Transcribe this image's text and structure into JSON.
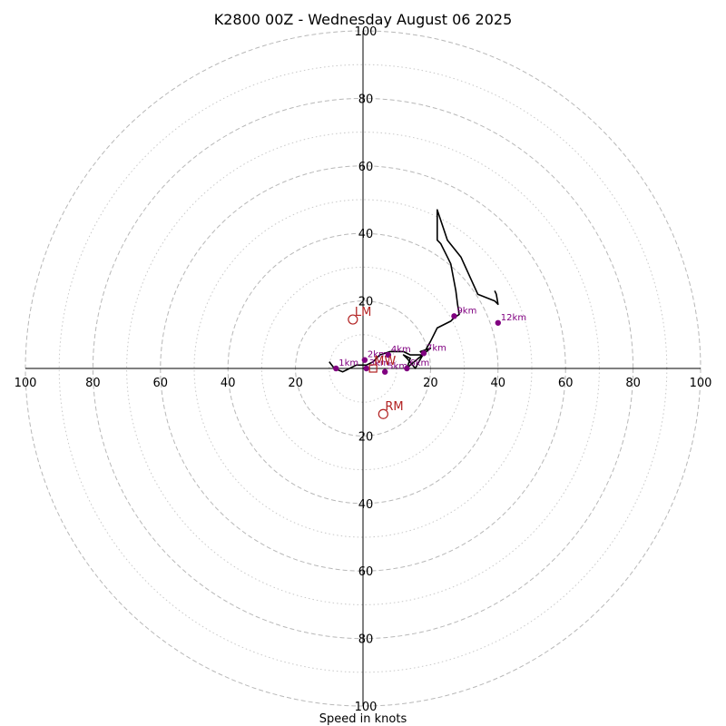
{
  "chart_data": {
    "type": "scatter",
    "title": "K2800 00Z - Wednesday August 06 2025",
    "xlabel": "Speed in knots",
    "ylabel": "",
    "xlim": [
      -100,
      100
    ],
    "ylim": [
      -100,
      100
    ],
    "rings_major": [
      20,
      40,
      60,
      80,
      100
    ],
    "rings_minor": [
      10,
      30,
      50,
      70,
      90
    ],
    "x_tick_labels": [
      "100",
      "80",
      "60",
      "40",
      "20",
      "20",
      "40",
      "60",
      "80",
      "100"
    ],
    "x_tick_values": [
      -100,
      -80,
      -60,
      -40,
      -20,
      20,
      40,
      60,
      80,
      100
    ],
    "y_tick_labels_top": [
      "100",
      "80",
      "60",
      "40",
      "20"
    ],
    "y_tick_values_top": [
      100,
      80,
      60,
      40,
      20
    ],
    "y_tick_labels_bottom": [
      "20",
      "40",
      "60",
      "80",
      "100"
    ],
    "y_tick_values_bottom": [
      -20,
      -40,
      -60,
      -80,
      -100
    ],
    "grid": true,
    "hodograph_line": {
      "color": "#000000",
      "x": [
        -10,
        -8.5,
        -6,
        -4,
        -2,
        1,
        3,
        5,
        8,
        10,
        12,
        14,
        16,
        18,
        17,
        20,
        14,
        13,
        14,
        12,
        13,
        15.5,
        16,
        20,
        22,
        26,
        27,
        28.5,
        28,
        27.5,
        26,
        25,
        23,
        22,
        22,
        25,
        29,
        34,
        39,
        40,
        39.5,
        39
      ],
      "y": [
        2,
        0,
        -1,
        0,
        1,
        1,
        2,
        4,
        5,
        5,
        5,
        4,
        4,
        4,
        5,
        6,
        1,
        0,
        3,
        4,
        3,
        0,
        1,
        8,
        12,
        14,
        15,
        16,
        19,
        23,
        31,
        33,
        37,
        38,
        47,
        38,
        33,
        22,
        20,
        19,
        22,
        23
      ]
    },
    "height_markers": {
      "color": "#800080",
      "points": [
        {
          "label": "1km",
          "x": -8,
          "y": 0
        },
        {
          "label": "2km",
          "x": 0.5,
          "y": 2.5
        },
        {
          "label": "3km",
          "x": 1,
          "y": 0
        },
        {
          "label": "4km",
          "x": 7.5,
          "y": 4
        },
        {
          "label": "5km",
          "x": 6.5,
          "y": -1
        },
        {
          "label": "6km",
          "x": 13,
          "y": 0
        },
        {
          "label": "7km",
          "x": 18,
          "y": 4.5
        },
        {
          "label": "9km",
          "x": 27,
          "y": 15.5
        },
        {
          "label": "12km",
          "x": 40,
          "y": 13.5
        }
      ]
    },
    "storm_motion": {
      "color": "#b22222",
      "points": [
        {
          "label": "LM",
          "x": -3,
          "y": 14.5
        },
        {
          "label": "RM",
          "x": 6,
          "y": -13.5
        },
        {
          "label": "MW",
          "x": 3,
          "y": 0
        }
      ]
    }
  }
}
